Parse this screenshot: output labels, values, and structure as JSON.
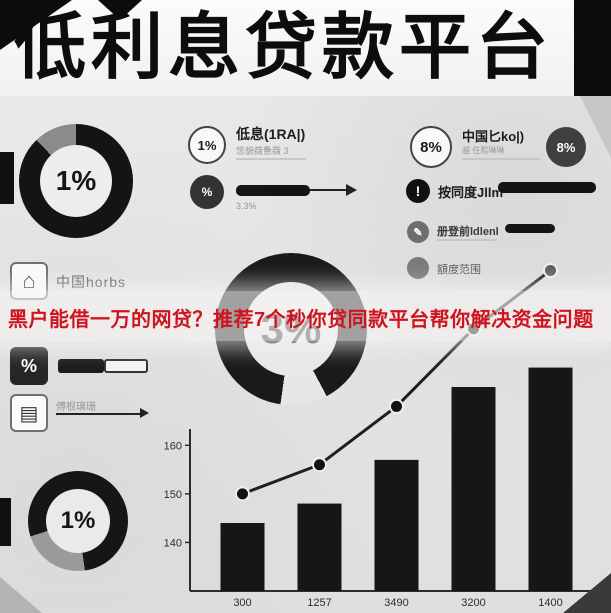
{
  "banner": {
    "title": "低利息贷款平台"
  },
  "headline": {
    "text": "黑户能借一万的网贷？推荐7个秒你贷同款平台帮你解决资金问题",
    "color": "#cf1420"
  },
  "donut_top_left": {
    "value": "1%"
  },
  "donut_center": {
    "value": "3%"
  },
  "donut_bottom_left": {
    "value": "1%"
  },
  "stat_low": {
    "badge": "1%",
    "label": "低息(1RA|)",
    "sub": "恁貌薇惫薇 3",
    "percent_badge": "%",
    "note": "3.3%"
  },
  "stat_cn": {
    "badge": "8%",
    "label": "中国匕ko|)",
    "sub": "越 任熙琳琳",
    "badge2": "8%"
  },
  "right_list": {
    "items": [
      {
        "label": "按同度Jllm"
      },
      {
        "label": "册登前ldlenl"
      },
      {
        "label": "額度范围"
      }
    ]
  },
  "left_panel": {
    "china_label": "中国horbs",
    "percent_badge": "%",
    "doc_label": "傅根璃珊"
  },
  "chart_data": {
    "type": "bar+line",
    "title": "",
    "categories": [
      "300",
      "1257",
      "3490",
      "3200",
      "1400"
    ],
    "series": [
      {
        "name": "bars",
        "chart": "bar",
        "values": [
          144,
          148,
          157,
          172,
          176
        ]
      },
      {
        "name": "trend-line",
        "chart": "line",
        "values": [
          150,
          156,
          168,
          184,
          196
        ]
      }
    ],
    "yticks": [
      160,
      150,
      140
    ],
    "ylim": [
      130,
      200
    ],
    "grid": false,
    "legend": "none",
    "colors": {
      "bar": "#161616",
      "line": "#1f1f1f"
    }
  }
}
